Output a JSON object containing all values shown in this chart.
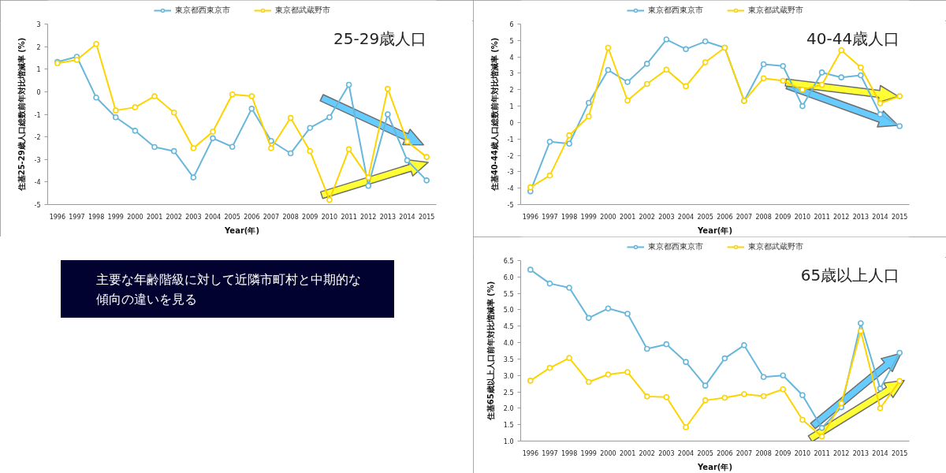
{
  "chart_data": [
    {
      "type": "line",
      "title": "25-29歳人口",
      "xlabel": "Year(年)",
      "ylabel": "住基25-29歳人口総数前年対比増減率 (%)",
      "legend": "top",
      "marker": "circle",
      "categories": [
        "1996",
        "1997",
        "1998",
        "1999",
        "2000",
        "2001",
        "2002",
        "2003",
        "2004",
        "2005",
        "2006",
        "2007",
        "2008",
        "2009",
        "2010",
        "2011",
        "2012",
        "2013",
        "2014",
        "2015"
      ],
      "series": [
        {
          "name": "東京都西東京市",
          "color": "#67b7dc",
          "values": [
            1.32,
            1.55,
            -0.26,
            -1.13,
            -1.73,
            -2.45,
            -2.63,
            -3.8,
            -2.06,
            -2.44,
            -0.75,
            -2.18,
            -2.73,
            -1.6,
            -1.13,
            0.31,
            -4.17,
            -1.0,
            -3.04,
            -3.93
          ]
        },
        {
          "name": "東京都武蔵野市",
          "color": "#fdd400",
          "values": [
            1.26,
            1.41,
            2.12,
            -0.83,
            -0.69,
            -0.2,
            -0.92,
            -2.5,
            -1.77,
            -0.12,
            -0.2,
            -2.5,
            -1.16,
            -2.63,
            -4.79,
            -2.55,
            -3.8,
            0.13,
            -2.21,
            -2.89
          ]
        }
      ],
      "ylim": [
        -5,
        3
      ],
      "yticks": [
        -5,
        -4,
        -3,
        -2,
        -1,
        0,
        1,
        2,
        3
      ]
    },
    {
      "type": "line",
      "title": "40-44歳人口",
      "xlabel": "Year(年)",
      "ylabel": "住基40-44歳人口総数前年対比増減率 (%)",
      "legend": "top",
      "marker": "circle",
      "categories": [
        "1996",
        "1997",
        "1998",
        "1999",
        "2000",
        "2001",
        "2002",
        "2003",
        "2004",
        "2005",
        "2006",
        "2007",
        "2008",
        "2009",
        "2010",
        "2011",
        "2012",
        "2013",
        "2014",
        "2015"
      ],
      "series": [
        {
          "name": "東京都西東京市",
          "color": "#67b7dc",
          "values": [
            -4.19,
            -1.17,
            -1.29,
            1.2,
            3.2,
            2.47,
            3.58,
            5.06,
            4.47,
            4.94,
            4.56,
            1.32,
            3.55,
            3.44,
            1.0,
            3.05,
            2.75,
            2.88,
            0.5,
            -0.22
          ]
        },
        {
          "name": "東京都武蔵野市",
          "color": "#fdd400",
          "values": [
            -3.95,
            -3.23,
            -0.78,
            0.37,
            4.56,
            1.34,
            2.35,
            3.22,
            2.21,
            3.67,
            4.56,
            1.32,
            2.7,
            2.54,
            2.0,
            2.3,
            4.4,
            3.36,
            1.17,
            1.6
          ]
        }
      ],
      "ylim": [
        -5,
        6
      ],
      "yticks": [
        -5,
        -4,
        -3,
        -2,
        -1,
        0,
        1,
        2,
        3,
        4,
        5,
        6
      ]
    },
    {
      "type": "other",
      "annotations": [
        "主要な年齢階級に対して近隣市町村と中期的な傾向の違いを見る"
      ]
    },
    {
      "type": "line",
      "title": "65歳以上人口",
      "xlabel": "Year(年)",
      "ylabel": "住基65歳以上人口前年対比増減率 (%)",
      "legend": "top",
      "marker": "circle",
      "categories": [
        "1996",
        "1997",
        "1998",
        "1999",
        "2000",
        "2001",
        "2002",
        "2003",
        "2004",
        "2005",
        "2006",
        "2007",
        "2008",
        "2009",
        "2010",
        "2011",
        "2012",
        "2013",
        "2014",
        "2015"
      ],
      "series": [
        {
          "name": "東京都西東京市",
          "color": "#67b7dc",
          "values": [
            6.22,
            5.8,
            5.67,
            4.75,
            5.04,
            4.88,
            3.81,
            3.95,
            3.41,
            2.69,
            3.52,
            3.92,
            2.95,
            3.0,
            2.4,
            1.4,
            2.03,
            4.59,
            2.6,
            3.69
          ]
        },
        {
          "name": "東京都武蔵野市",
          "color": "#fdd400",
          "values": [
            2.84,
            3.23,
            3.53,
            2.8,
            3.03,
            3.1,
            2.36,
            2.34,
            1.42,
            2.24,
            2.32,
            2.43,
            2.37,
            2.58,
            1.65,
            1.14,
            2.15,
            4.35,
            2.0,
            2.83
          ]
        }
      ],
      "ylim": [
        1.0,
        6.5
      ],
      "yticks": [
        {
          "value": 1,
          "label": "1.0"
        },
        1.5,
        {
          "value": 2,
          "label": "2.0"
        },
        2.5,
        {
          "value": 3,
          "label": "3.0"
        },
        3.5,
        {
          "value": 4,
          "label": "4.0"
        },
        4.5,
        {
          "value": 5,
          "label": "5.0"
        },
        5.5,
        {
          "value": 6,
          "label": "6.0"
        },
        6.5
      ]
    }
  ]
}
